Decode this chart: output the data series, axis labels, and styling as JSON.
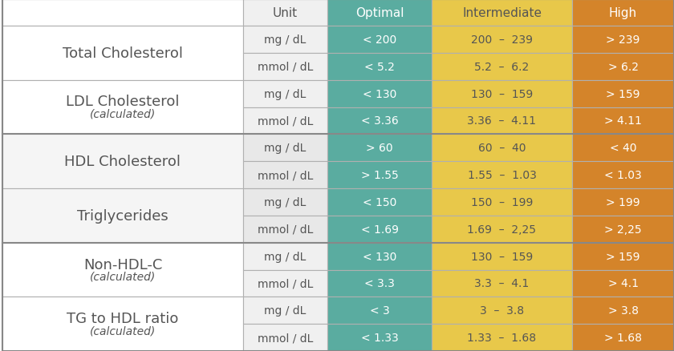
{
  "header": [
    "",
    "Unit",
    "Optimal",
    "Intermediate",
    "High"
  ],
  "header_bg": [
    "#ffffff",
    "#f0f0f0",
    "#5aaca0",
    "#e8c84a",
    "#d4842a"
  ],
  "header_text_color": [
    "#555555",
    "#555555",
    "#ffffff",
    "#555555",
    "#ffffff"
  ],
  "rows": [
    {
      "label": "Total Cholesterol",
      "label2": null,
      "subrows": [
        [
          "mg / dL",
          "< 200",
          "200  –  239",
          "> 239"
        ],
        [
          "mmol / dL",
          "< 5.2",
          "5.2  –  6.2",
          "> 6.2"
        ]
      ]
    },
    {
      "label": "LDL Cholesterol",
      "label2": "(calculated)",
      "subrows": [
        [
          "mg / dL",
          "< 130",
          "130  –  159",
          "> 159"
        ],
        [
          "mmol / dL",
          "< 3.36",
          "3.36  –  4.11",
          "> 4.11"
        ]
      ]
    },
    {
      "label": "HDL Cholesterol",
      "label2": null,
      "subrows": [
        [
          "mg / dL",
          "> 60",
          "60  –  40",
          "< 40"
        ],
        [
          "mmol / dL",
          "> 1.55",
          "1.55  –  1.03",
          "< 1.03"
        ]
      ]
    },
    {
      "label": "Triglycerides",
      "label2": null,
      "subrows": [
        [
          "mg / dL",
          "< 150",
          "150  –  199",
          "> 199"
        ],
        [
          "mmol / dL",
          "< 1.69",
          "1.69  –  2,25",
          "> 2,25"
        ]
      ]
    },
    {
      "label": "Non-HDL-C",
      "label2": "(calculated)",
      "subrows": [
        [
          "mg / dL",
          "< 130",
          "130  –  159",
          "> 159"
        ],
        [
          "mmol / dL",
          "< 3.3",
          "3.3  –  4.1",
          "> 4.1"
        ]
      ]
    },
    {
      "label": "TG to HDL ratio",
      "label2": "(calculated)",
      "subrows": [
        [
          "mg / dL",
          "< 3",
          "3  –  3.8",
          "> 3.8"
        ],
        [
          "mmol / dL",
          "< 1.33",
          "1.33  –  1.68",
          "> 1.68"
        ]
      ]
    }
  ],
  "col_colors": {
    "optimal": "#5aaca0",
    "intermediate": "#e8c84a",
    "high": "#d4842a"
  },
  "border_color": "#b0b0b0",
  "thick_border_color": "#888888",
  "text_color_dark": "#555555",
  "text_color_white": "#ffffff",
  "fig_bg": "#ffffff",
  "label_fontsize": 13,
  "sublabel_fontsize": 10,
  "header_fontsize": 11,
  "cell_fontsize": 10,
  "fig_width": 8.4,
  "fig_height": 4.39,
  "dpi": 100
}
